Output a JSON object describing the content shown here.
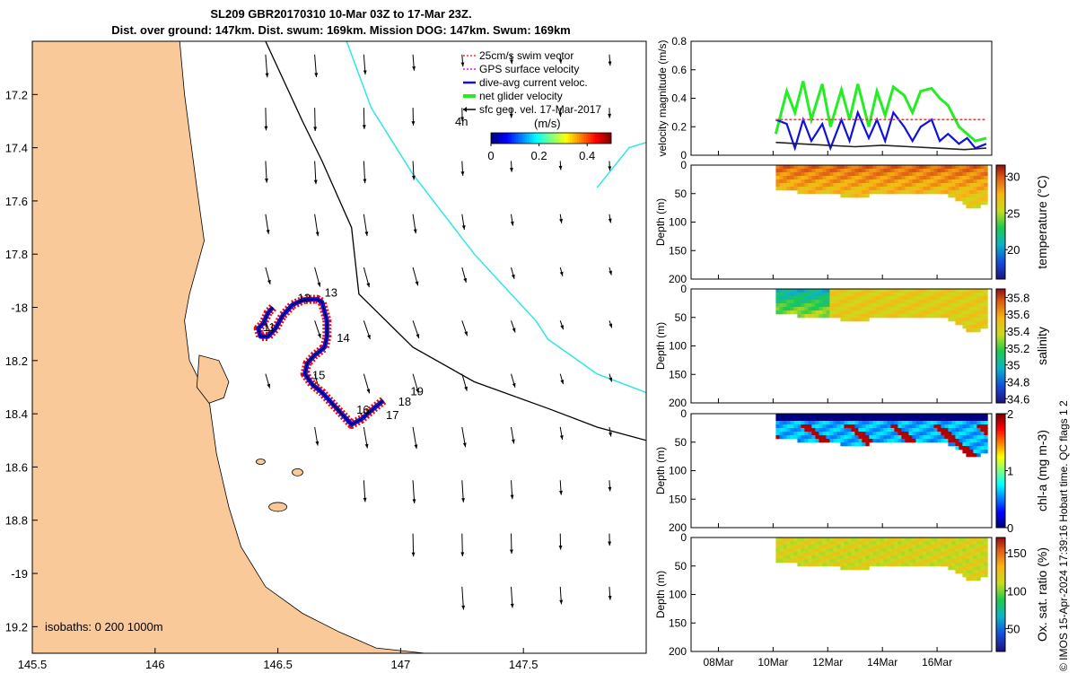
{
  "header": {
    "title_line1": "SL209 GBR20170310 10-Mar 03Z to 17-Mar 23Z.",
    "title_line2": "Dist. over ground: 147km. Dist. swum: 169km. Mission DOG: 147km. Swum: 169km"
  },
  "side_label": "© IMOS 15-Apr-2024 17:39:16 Hobart time. QC flags 1  2",
  "colors": {
    "land": "#f9c99a",
    "track_red": "#ff0000",
    "track_blue": "#1010e0",
    "isobath_cyan": "#2ee6e6",
    "net_green": "#22ee22",
    "swim_red": "#ff3333"
  },
  "chart_data": [
    {
      "type": "map",
      "name": "track map",
      "xlim": [
        145.5,
        148
      ],
      "ylim": [
        -19.3,
        -17
      ],
      "x_ticks": [
        145.5,
        146,
        146.5,
        147,
        147.5
      ],
      "x_tick_labels": [
        "145.5",
        "146",
        "146.5",
        "147",
        "147.5"
      ],
      "y_ticks": [
        -17.2,
        -17.4,
        -17.6,
        -17.8,
        -18,
        -18.2,
        -18.4,
        -18.6,
        -18.8,
        -19,
        -19.2
      ],
      "y_tick_labels": [
        "17.2",
        "17.4",
        "17.6",
        "17.8",
        "-18",
        "18.2",
        "18.4",
        "18.6",
        "18.8",
        "-19",
        "19.2"
      ],
      "legend": {
        "position": "top-right",
        "entries": [
          "25cm/s swim vector",
          "GPS surface velocity",
          "dive-avg current veloc.",
          "net glider velocity",
          "sfc geo. vel. 17-Mar-2017"
        ],
        "scale_label": "4h",
        "colorbar_label": "(m/s)",
        "colorbar_ticks": [
          "0",
          "0.2",
          "0.4"
        ],
        "colorbar_range": [
          0,
          0.5
        ]
      },
      "isobaths_label": "isobaths: 0   200  1000m",
      "day_labels": [
        {
          "text": "11",
          "lon": 146.44,
          "lat": -18.09
        },
        {
          "text": "12",
          "lon": 146.58,
          "lat": -17.98
        },
        {
          "text": "13",
          "lon": 146.69,
          "lat": -17.96
        },
        {
          "text": "14",
          "lon": 146.74,
          "lat": -18.13
        },
        {
          "text": "15",
          "lon": 146.64,
          "lat": -18.27
        },
        {
          "text": "16",
          "lon": 146.82,
          "lat": -18.4
        },
        {
          "text": "17",
          "lon": 146.94,
          "lat": -18.42
        },
        {
          "text": "18",
          "lon": 146.99,
          "lat": -18.37
        },
        {
          "text": "19",
          "lon": 147.04,
          "lat": -18.33
        }
      ],
      "track": [
        [
          146.48,
          -18.0
        ],
        [
          146.46,
          -18.02
        ],
        [
          146.44,
          -18.06
        ],
        [
          146.42,
          -18.08
        ],
        [
          146.43,
          -18.11
        ],
        [
          146.46,
          -18.11
        ],
        [
          146.49,
          -18.08
        ],
        [
          146.52,
          -18.03
        ],
        [
          146.56,
          -17.99
        ],
        [
          146.61,
          -17.97
        ],
        [
          146.66,
          -17.97
        ],
        [
          146.68,
          -17.98
        ],
        [
          146.7,
          -18.05
        ],
        [
          146.7,
          -18.11
        ],
        [
          146.69,
          -18.15
        ],
        [
          146.65,
          -18.18
        ],
        [
          146.62,
          -18.21
        ],
        [
          146.61,
          -18.25
        ],
        [
          146.64,
          -18.29
        ],
        [
          146.68,
          -18.32
        ],
        [
          146.72,
          -18.36
        ],
        [
          146.77,
          -18.41
        ],
        [
          146.8,
          -18.44
        ],
        [
          146.84,
          -18.42
        ],
        [
          146.89,
          -18.38
        ],
        [
          146.93,
          -18.35
        ]
      ],
      "current_vectors_extent": {
        "lon": [
          146.05,
          147.85
        ],
        "lat": [
          -19.05,
          -17.05
        ]
      }
    },
    {
      "type": "line",
      "name": "velocity magnitude",
      "ylabel": "velocity magnitude (m/s)",
      "ylim": [
        0,
        0.8
      ],
      "y_ticks": [
        0,
        0.2,
        0.4,
        0.6,
        0.8
      ],
      "x_tick_labels": [
        "08Mar",
        "10Mar",
        "12Mar",
        "14Mar",
        "16Mar"
      ],
      "x_days": [
        7,
        18
      ],
      "x_ticks": [
        8,
        10,
        12,
        14,
        16
      ],
      "series": [
        {
          "name": "net glider velocity",
          "color": "#22ee22",
          "x": [
            10.1,
            10.5,
            10.8,
            11.1,
            11.4,
            11.8,
            12.1,
            12.5,
            12.8,
            13.1,
            13.5,
            13.8,
            14.1,
            14.4,
            14.8,
            15.1,
            15.4,
            15.8,
            16.1,
            16.4,
            16.8,
            17.1,
            17.4,
            17.8
          ],
          "y": [
            0.15,
            0.45,
            0.3,
            0.52,
            0.25,
            0.5,
            0.2,
            0.46,
            0.25,
            0.5,
            0.2,
            0.45,
            0.28,
            0.48,
            0.42,
            0.3,
            0.45,
            0.47,
            0.4,
            0.35,
            0.2,
            0.15,
            0.1,
            0.12
          ]
        },
        {
          "name": "dive-avg current veloc.",
          "color": "#1010e0",
          "x": [
            10.1,
            10.5,
            10.8,
            11.1,
            11.4,
            11.8,
            12.1,
            12.5,
            12.8,
            13.1,
            13.5,
            13.8,
            14.1,
            14.4,
            14.8,
            15.1,
            15.4,
            15.8,
            16.1,
            16.4,
            16.8,
            17.1,
            17.4,
            17.8
          ],
          "y": [
            0.25,
            0.22,
            0.05,
            0.25,
            0.1,
            0.22,
            0.05,
            0.25,
            0.1,
            0.3,
            0.12,
            0.25,
            0.1,
            0.3,
            0.2,
            0.1,
            0.2,
            0.25,
            0.1,
            0.15,
            0.08,
            0.12,
            0.05,
            0.08
          ]
        },
        {
          "name": "sfc geo. vel.",
          "color": "#222222",
          "x": [
            10.1,
            11,
            12,
            13,
            14,
            15,
            16,
            17,
            17.8
          ],
          "y": [
            0.09,
            0.08,
            0.07,
            0.06,
            0.07,
            0.06,
            0.05,
            0.04,
            0.05
          ]
        },
        {
          "name": "25cm/s swim vector",
          "color": "#ff3333",
          "x": [
            10.1,
            17.8
          ],
          "y": [
            0.25,
            0.25
          ]
        }
      ]
    },
    {
      "type": "heatmap",
      "name": "temperature section",
      "ylabel": "Depth (m)",
      "ylim": [
        200,
        0
      ],
      "y_ticks": [
        0,
        50,
        100,
        150,
        200
      ],
      "colorbar_label": "temperature (°C)",
      "colorbar_ticks": [
        20,
        25,
        30
      ],
      "colorbar_range": [
        16,
        31.5
      ],
      "dominant_value": 29.5,
      "colormap": "parula-jet"
    },
    {
      "type": "heatmap",
      "name": "salinity section",
      "ylabel": "Depth (m)",
      "ylim": [
        200,
        0
      ],
      "y_ticks": [
        0,
        50,
        100,
        150,
        200
      ],
      "colorbar_label": "salinity",
      "colorbar_ticks": [
        34.6,
        34.8,
        35,
        35.2,
        35.4,
        35.6,
        35.8
      ],
      "colorbar_range": [
        34.55,
        35.9
      ],
      "dominant_value": 35.45
    },
    {
      "type": "heatmap",
      "name": "chlorophyll section",
      "ylabel": "Depth (m)",
      "ylim": [
        200,
        0
      ],
      "y_ticks": [
        0,
        50,
        100,
        150,
        200
      ],
      "colorbar_label": "chl-a (mg m-3)",
      "colorbar_ticks": [
        0,
        1,
        2
      ],
      "colorbar_range": [
        0,
        2
      ],
      "dominant_value": 0.6
    },
    {
      "type": "heatmap",
      "name": "oxygen saturation section",
      "ylabel": "Depth (m)",
      "ylim": [
        200,
        0
      ],
      "y_ticks": [
        0,
        50,
        100,
        150,
        200
      ],
      "colorbar_label": "Ox. sat. ratio (%)",
      "colorbar_ticks": [
        50,
        100,
        150
      ],
      "colorbar_range": [
        20,
        170
      ],
      "dominant_value": 115
    }
  ],
  "section_depth_profile": {
    "x": [
      10.1,
      11,
      12,
      12.7,
      13.5,
      14.5,
      15.5,
      16.3,
      16.8,
      17.2,
      17.8
    ],
    "depth": [
      40,
      45,
      45,
      55,
      50,
      50,
      45,
      50,
      60,
      75,
      65
    ]
  }
}
